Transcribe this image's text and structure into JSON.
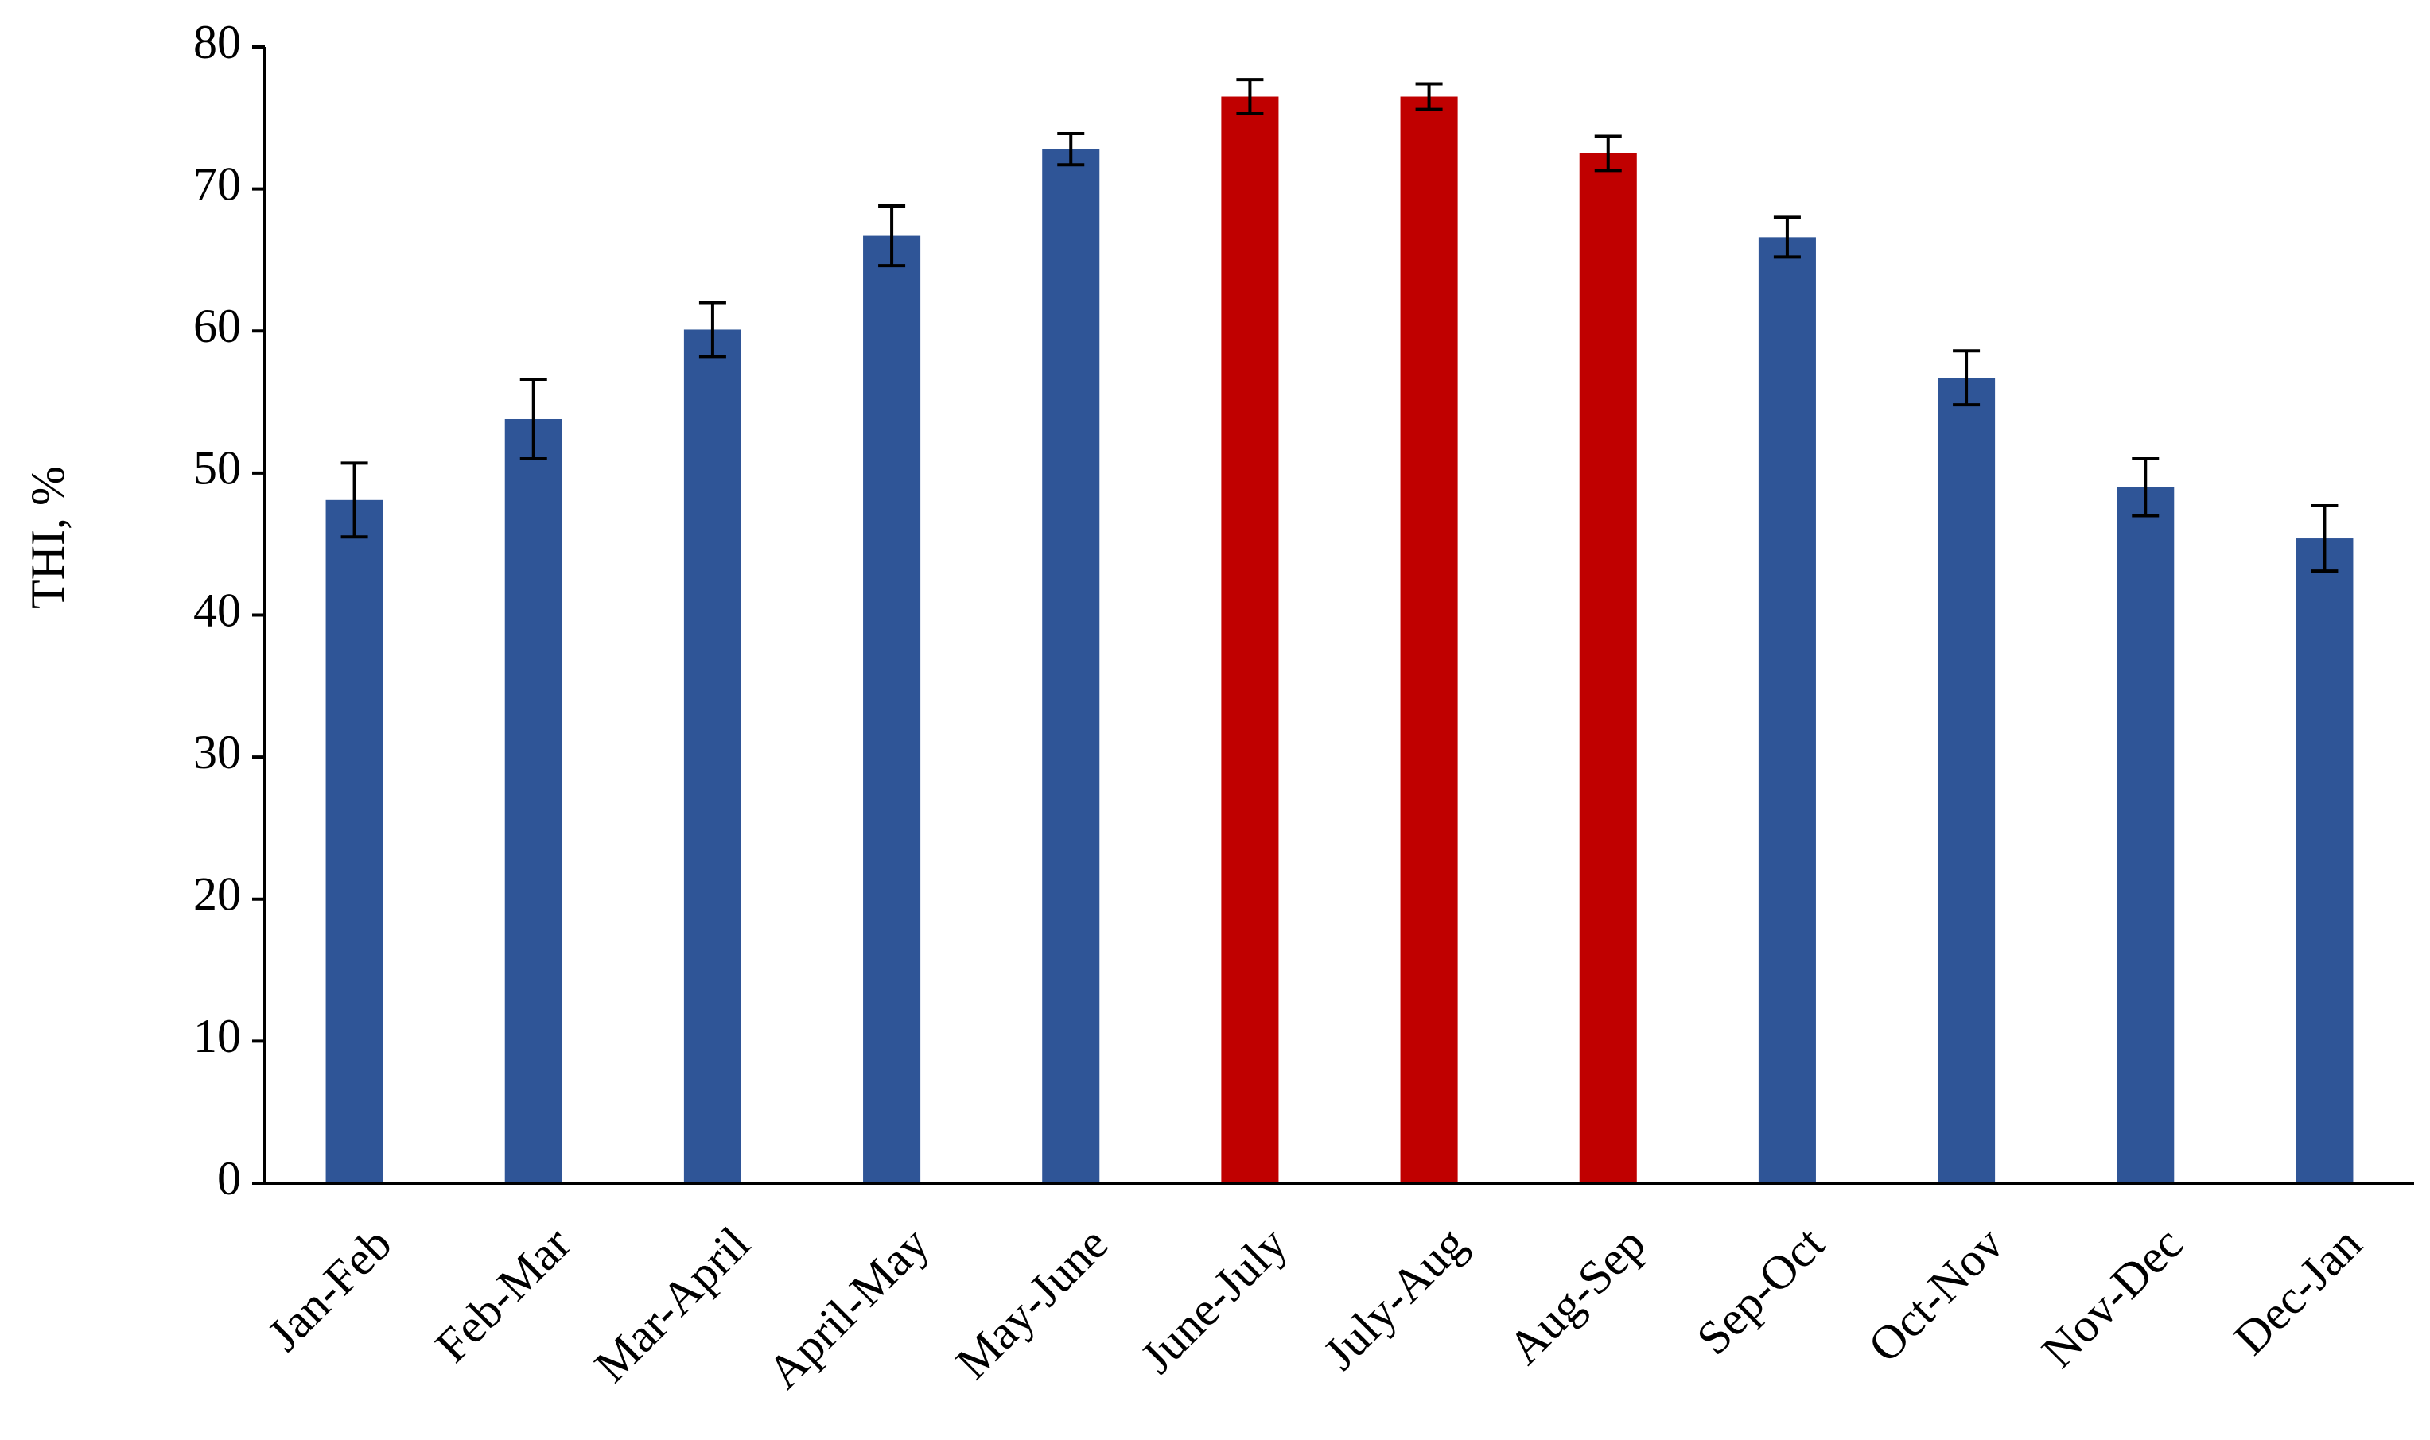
{
  "chart_data": {
    "type": "bar",
    "ylabel": "THI, %",
    "categories": [
      "Jan-Feb",
      "Feb-Mar",
      "Mar-April",
      "April-May",
      "May-June",
      "June-July",
      "July-Aug",
      "Aug-Sep",
      "Sep-Oct",
      "Oct-Nov",
      "Nov-Dec",
      "Dec-Jan"
    ],
    "values": [
      48.1,
      53.8,
      60.1,
      66.7,
      72.8,
      76.5,
      76.5,
      72.5,
      66.6,
      56.7,
      49.0,
      45.4
    ],
    "errors": [
      2.6,
      2.8,
      1.9,
      2.1,
      1.1,
      1.2,
      0.9,
      1.2,
      1.4,
      1.9,
      2.0,
      2.3
    ],
    "colors": [
      "#2f5597",
      "#2f5597",
      "#2f5597",
      "#2f5597",
      "#2f5597",
      "#c00000",
      "#c00000",
      "#c00000",
      "#2f5597",
      "#2f5597",
      "#2f5597",
      "#2f5597"
    ],
    "ylim": [
      0,
      80
    ],
    "yticks": [
      0,
      10,
      20,
      30,
      40,
      50,
      60,
      70,
      80
    ],
    "grid": false
  }
}
